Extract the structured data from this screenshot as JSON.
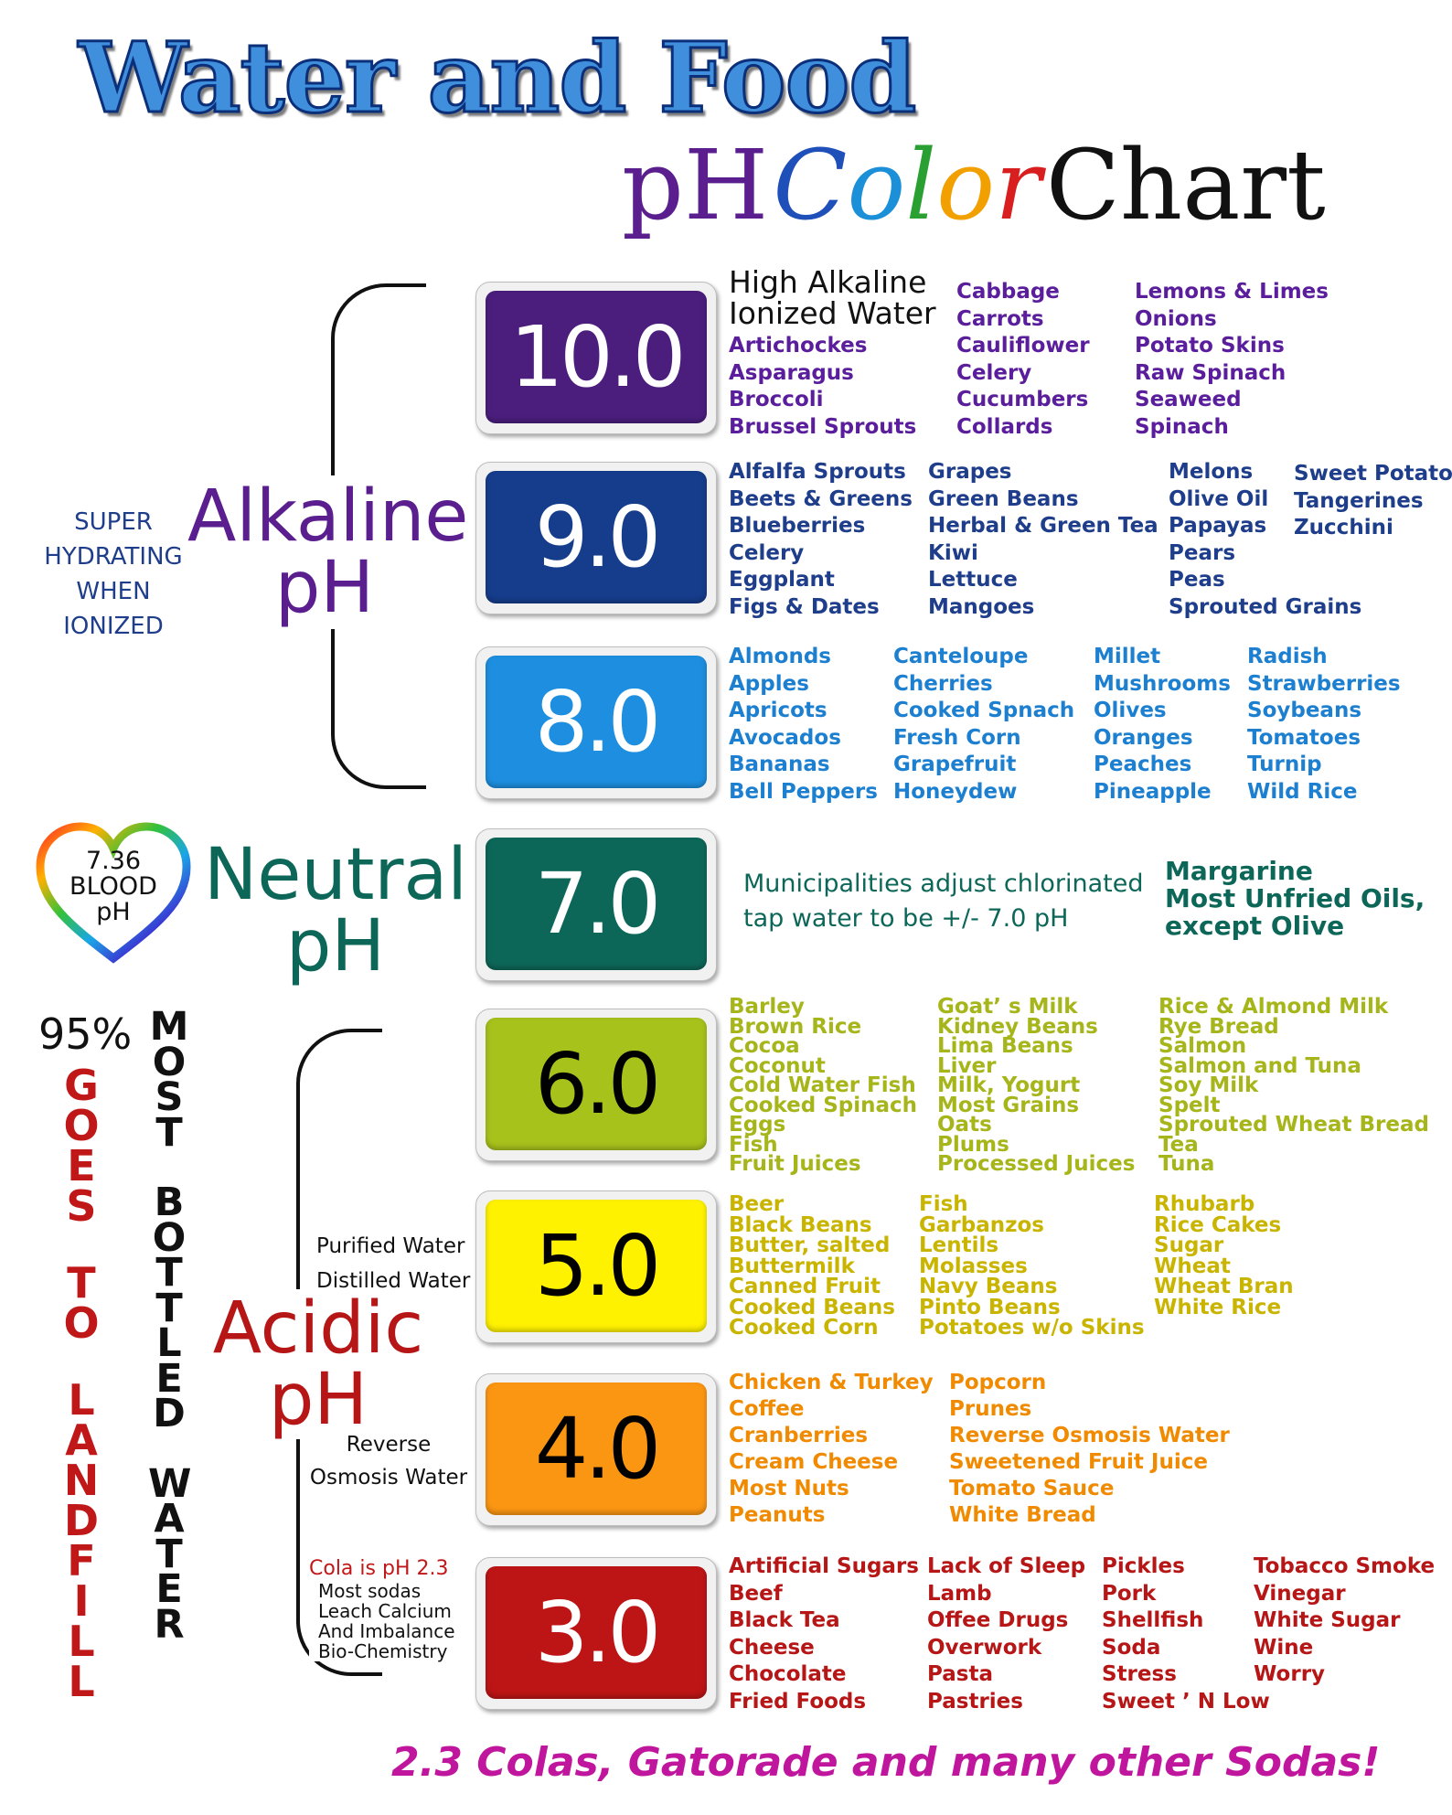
{
  "title": {
    "line1": "Water and Food",
    "ph": "pH",
    "color_letters": [
      {
        "ch": "C",
        "color": "#1f4fb8"
      },
      {
        "ch": "o",
        "color": "#1b8fd8"
      },
      {
        "ch": "l",
        "color": "#2aa032"
      },
      {
        "ch": "o",
        "color": "#f2a000"
      },
      {
        "ch": "r",
        "color": "#d81e1e"
      }
    ],
    "chart": "Chart"
  },
  "side": {
    "super_hydrating": [
      "SUPER",
      "HYDRATING",
      "WHEN IONIZED"
    ],
    "alkaline": [
      "Alkaline",
      "pH"
    ],
    "heart": [
      "7.36",
      "BLOOD",
      "pH"
    ],
    "neutral": [
      "Neutral",
      "pH"
    ],
    "acidic": [
      "Acidic",
      "pH"
    ],
    "percent": "95%",
    "goes_to_landfill": "GOES TO LANDFILL",
    "most_bottled_water": "MOST BOTTLED WATER",
    "purified": "Purified Water",
    "distilled": "Distilled Water",
    "reverse_osmosis": [
      "Reverse",
      "Osmosis Water"
    ],
    "cola_title": "Cola is pH 2.3",
    "cola_lines": [
      "Most sodas",
      "Leach Calcium",
      "And Imbalance",
      "Bio-Chemistry"
    ]
  },
  "levels": [
    {
      "value": "10.0",
      "color": "#4b1e7e",
      "text_color": "#ffffff"
    },
    {
      "value": "9.0",
      "color": "#163d8c",
      "text_color": "#ffffff"
    },
    {
      "value": "8.0",
      "color": "#1e8fe0",
      "text_color": "#ffffff"
    },
    {
      "value": "7.0",
      "color": "#0d6758",
      "text_color": "#ffffff"
    },
    {
      "value": "6.0",
      "color": "#a8c21c",
      "text_color": "#000000"
    },
    {
      "value": "5.0",
      "color": "#fff200",
      "text_color": "#000000"
    },
    {
      "value": "4.0",
      "color": "#fb9612",
      "text_color": "#000000"
    },
    {
      "value": "3.0",
      "color": "#bd1515",
      "text_color": "#ffffff"
    }
  ],
  "foods": {
    "ph10": {
      "heading": [
        "High Alkaline",
        "Ionized Water"
      ],
      "col1": [
        "Artichockes",
        "Asparagus",
        "Broccoli",
        "Brussel Sprouts"
      ],
      "col2": [
        "Cabbage",
        "Carrots",
        "Cauliflower",
        "Celery",
        "Cucumbers",
        "Collards"
      ],
      "col3": [
        "Lemons & Limes",
        "Onions",
        "Potato Skins",
        "Raw Spinach",
        "Seaweed",
        "Spinach"
      ]
    },
    "ph9": {
      "col1": [
        "Alfalfa Sprouts",
        "Beets & Greens",
        "Blueberries",
        "Celery",
        "Eggplant",
        "Figs & Dates"
      ],
      "col2": [
        "Grapes",
        "Green Beans",
        "Herbal & Green Tea",
        "Kiwi",
        "Lettuce",
        "Mangoes"
      ],
      "col3": [
        "Melons",
        "Olive Oil",
        "Papayas",
        "Pears",
        "Peas",
        "Sprouted Grains"
      ],
      "col4": [
        "Sweet Potato",
        "Tangerines",
        "Zucchini"
      ]
    },
    "ph8": {
      "col1": [
        "Almonds",
        "Apples",
        "Apricots",
        "Avocados",
        "Bananas",
        "Bell Peppers"
      ],
      "col2": [
        "Canteloupe",
        "Cherries",
        "Cooked Spnach",
        "Fresh Corn",
        "Grapefruit",
        "Honeydew"
      ],
      "col3": [
        "Millet",
        "Mushrooms",
        "Olives",
        "Oranges",
        "Peaches",
        "Pineapple"
      ],
      "col4": [
        "Radish",
        "Strawberries",
        "Soybeans",
        "Tomatoes",
        "Turnip",
        "Wild Rice"
      ]
    },
    "ph7": {
      "note": [
        "Municipalities adjust chlorinated",
        "tap water to be +/- 7.0 pH"
      ],
      "col2": [
        "Margarine",
        "Most Unfried Oils,",
        "except Olive"
      ]
    },
    "ph6": {
      "col1": [
        "Barley",
        "Brown Rice",
        "Cocoa",
        "Coconut",
        "Cold Water Fish",
        "Cooked Spinach",
        "Eggs",
        "Fish",
        "Fruit Juices"
      ],
      "col2": [
        "Goat’ s Milk",
        "Kidney Beans",
        "Lima Beans",
        "Liver",
        "Milk, Yogurt",
        "Most Grains",
        "Oats",
        "Plums",
        "Processed Juices"
      ],
      "col3": [
        "Rice & Almond Milk",
        "Rye Bread",
        "Salmon",
        "Salmon and Tuna",
        "Soy Milk",
        "Spelt",
        "Sprouted Wheat Bread",
        "Tea",
        "Tuna"
      ]
    },
    "ph5": {
      "col1": [
        "Beer",
        "Black Beans",
        "Butter, salted",
        "Buttermilk",
        "Canned Fruit",
        "Cooked Beans",
        "Cooked Corn"
      ],
      "col2": [
        "Fish",
        "Garbanzos",
        "Lentils",
        "Molasses",
        "Navy Beans",
        "Pinto Beans",
        "Potatoes w/o Skins"
      ],
      "col3": [
        "Rhubarb",
        "Rice Cakes",
        "Sugar",
        "Wheat",
        "Wheat Bran",
        "White Rice"
      ]
    },
    "ph4": {
      "col1": [
        "Chicken & Turkey",
        "Coffee",
        "Cranberries",
        "Cream Cheese",
        "Most Nuts",
        "Peanuts"
      ],
      "col2": [
        "Popcorn",
        "Prunes",
        "Reverse Osmosis Water",
        "Sweetened Fruit Juice",
        "Tomato Sauce",
        "White Bread"
      ]
    },
    "ph3": {
      "col1": [
        "Artificial Sugars",
        "Beef",
        "Black Tea",
        "Cheese",
        "Chocolate",
        "Fried Foods"
      ],
      "col2": [
        "Lack of Sleep",
        "Lamb",
        "Offee Drugs",
        "Overwork",
        "Pasta",
        "Pastries"
      ],
      "col3": [
        "Pickles",
        "Pork",
        "Shellfish",
        "Soda",
        "Stress",
        "Sweet ’ N Low"
      ],
      "col4": [
        "Tobacco Smoke",
        "Vinegar",
        "White Sugar",
        "Wine",
        "Worry"
      ]
    }
  },
  "footer": "2.3  Colas, Gatorade and many other Sodas!"
}
